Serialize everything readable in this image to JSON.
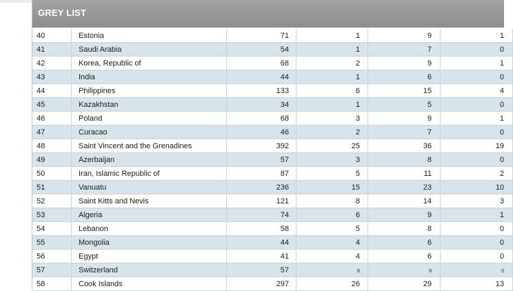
{
  "header": {
    "title": "GREY LIST"
  },
  "rows": [
    {
      "rank": "40",
      "country": "Estonia",
      "c1": "71",
      "c2": "1",
      "c3": "9",
      "c4": "1"
    },
    {
      "rank": "41",
      "country": "Saudi Arabia",
      "c1": "54",
      "c2": "1",
      "c3": "7",
      "c4": "0"
    },
    {
      "rank": "42",
      "country": "Korea, Republic of",
      "c1": "68",
      "c2": "2",
      "c3": "9",
      "c4": "1"
    },
    {
      "rank": "43",
      "country": "India",
      "c1": "44",
      "c2": "1",
      "c3": "6",
      "c4": "0"
    },
    {
      "rank": "44",
      "country": "Philippines",
      "c1": "133",
      "c2": "6",
      "c3": "15",
      "c4": "4"
    },
    {
      "rank": "45",
      "country": "Kazakhstan",
      "c1": "34",
      "c2": "1",
      "c3": "5",
      "c4": "0"
    },
    {
      "rank": "46",
      "country": "Poland",
      "c1": "68",
      "c2": "3",
      "c3": "9",
      "c4": "1"
    },
    {
      "rank": "47",
      "country": "Curacao",
      "c1": "46",
      "c2": "2",
      "c3": "7",
      "c4": "0"
    },
    {
      "rank": "48",
      "country": "Saint Vincent and the Grenadines",
      "c1": "392",
      "c2": "25",
      "c3": "36",
      "c4": "19"
    },
    {
      "rank": "49",
      "country": "Azerbaijan",
      "c1": "57",
      "c2": "3",
      "c3": "8",
      "c4": "0"
    },
    {
      "rank": "50",
      "country": "Iran, Islamic Republic of",
      "c1": "87",
      "c2": "5",
      "c3": "11",
      "c4": "2"
    },
    {
      "rank": "51",
      "country": "Vanuatu",
      "c1": "236",
      "c2": "15",
      "c3": "23",
      "c4": "10"
    },
    {
      "rank": "52",
      "country": "Saint Kitts and Nevis",
      "c1": "121",
      "c2": "8",
      "c3": "14",
      "c4": "3"
    },
    {
      "rank": "53",
      "country": "Algeria",
      "c1": "74",
      "c2": "6",
      "c3": "9",
      "c4": "1"
    },
    {
      "rank": "54",
      "country": "Lebanon",
      "c1": "58",
      "c2": "5",
      "c3": "8",
      "c4": "0"
    },
    {
      "rank": "55",
      "country": "Mongolia",
      "c1": "44",
      "c2": "4",
      "c3": "6",
      "c4": "0"
    },
    {
      "rank": "56",
      "country": "Egypt",
      "c1": "41",
      "c2": "4",
      "c3": "6",
      "c4": "0"
    },
    {
      "rank": "57",
      "country": "Switzerland",
      "c1": "57",
      "c2": "6",
      "c3": "8",
      "c4": "0"
    },
    {
      "rank": "58",
      "country": "Cook Islands",
      "c1": "297",
      "c2": "26",
      "c3": "29",
      "c4": "13"
    }
  ]
}
